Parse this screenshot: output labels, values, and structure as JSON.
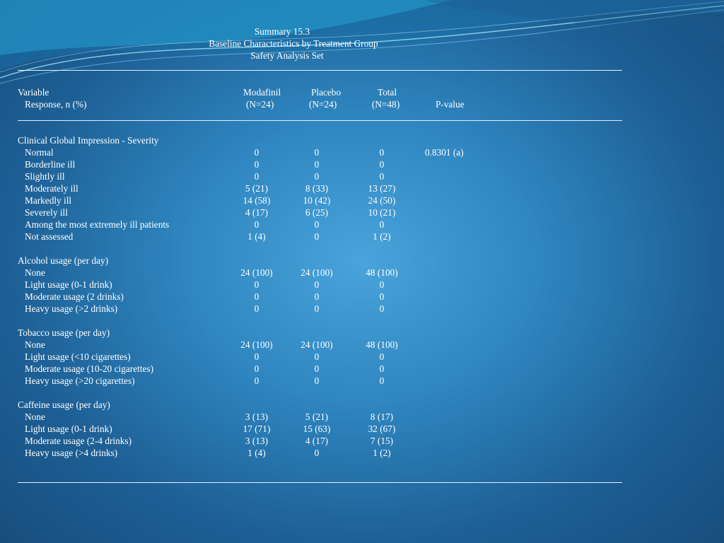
{
  "title": {
    "line1": "Summary 15.3",
    "line2": "Baseline Characteristics by Treatment Group",
    "line3": "Safety Analysis Set"
  },
  "header": {
    "variable": "Variable",
    "response": "Response, n (%)",
    "modafinil": "Modafinil",
    "modafinil_n": "(N=24)",
    "placebo": "Placebo",
    "placebo_n": "(N=24)",
    "total": "Total",
    "total_n": "(N=48)",
    "pvalue": "P-value"
  },
  "rows": [
    {
      "label": "Clinical Global Impression - Severity",
      "section": true
    },
    {
      "label": "Normal",
      "m": "0",
      "p": "0",
      "t": "0",
      "pv": "0.8301 (a)"
    },
    {
      "label": "Borderline ill",
      "m": "0",
      "p": "0",
      "t": "0"
    },
    {
      "label": "Slightly ill",
      "m": "0",
      "p": "0",
      "t": "0"
    },
    {
      "label": "Moderately ill",
      "m": "5 (21)",
      "p": "8 (33)",
      "t": "13 (27)"
    },
    {
      "label": "Markedly ill",
      "m": "14 (58)",
      "p": "10 (42)",
      "t": "24 (50)"
    },
    {
      "label": "Severely ill",
      "m": "4 (17)",
      "p": "6 (25)",
      "t": "10 (21)"
    },
    {
      "label": "Among the most extremely ill patients",
      "m": "0",
      "p": "0",
      "t": "0"
    },
    {
      "label": "Not assessed",
      "m": "1 (4)",
      "p": "0",
      "t": "1 (2)"
    },
    {
      "blank": true
    },
    {
      "label": "Alcohol usage (per day)",
      "section": true
    },
    {
      "label": "None",
      "m": "24 (100)",
      "p": "24 (100)",
      "t": "48 (100)"
    },
    {
      "label": "Light usage (0-1 drink)",
      "m": "0",
      "p": "0",
      "t": "0"
    },
    {
      "label": "Moderate usage (2 drinks)",
      "m": "0",
      "p": "0",
      "t": "0"
    },
    {
      "label": "Heavy usage (>2 drinks)",
      "m": "0",
      "p": "0",
      "t": "0"
    },
    {
      "blank": true
    },
    {
      "label": "Tobacco usage (per day)",
      "section": true
    },
    {
      "label": "None",
      "m": "24 (100)",
      "p": "24 (100)",
      "t": "48 (100)"
    },
    {
      "label": "Light usage (<10 cigarettes)",
      "m": "0",
      "p": "0",
      "t": "0"
    },
    {
      "label": "Moderate usage (10-20 cigarettes)",
      "m": "0",
      "p": "0",
      "t": "0"
    },
    {
      "label": "Heavy usage (>20 cigarettes)",
      "m": "0",
      "p": "0",
      "t": "0"
    },
    {
      "blank": true
    },
    {
      "label": "Caffeine usage (per day)",
      "section": true
    },
    {
      "label": "None",
      "m": "3 (13)",
      "p": "5 (21)",
      "t": "8 (17)"
    },
    {
      "label": "Light usage (0-1 drink)",
      "m": "17 (71)",
      "p": "15 (63)",
      "t": "32 (67)"
    },
    {
      "label": "Moderate usage (2-4 drinks)",
      "m": "3 (13)",
      "p": "4 (17)",
      "t": "7 (15)"
    },
    {
      "label": "Heavy usage (>4 drinks)",
      "m": "1 (4)",
      "p": "0",
      "t": "1 (2)"
    }
  ]
}
